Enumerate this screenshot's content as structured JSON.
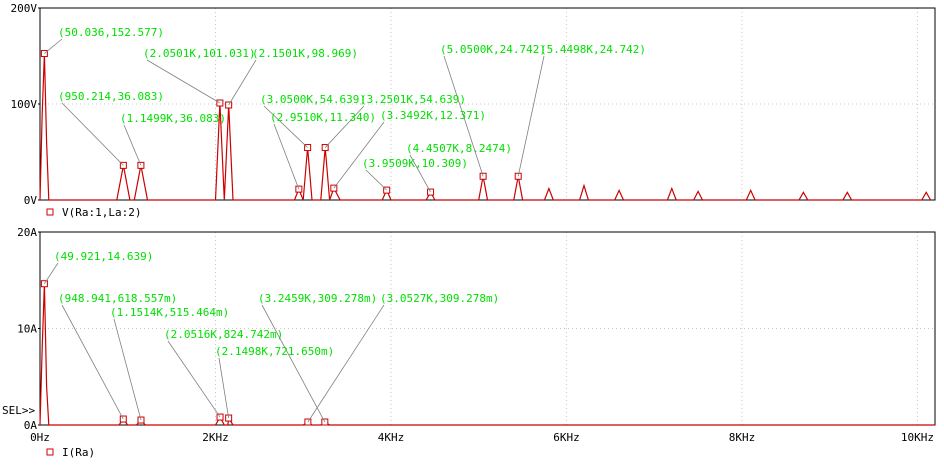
{
  "colors": {
    "background": "#ffffff",
    "trace": "#cc0000",
    "grid": "#c8c8c8",
    "frame": "#000000",
    "marker": "#cc0000",
    "annotation": "#00e000",
    "leader": "#808080"
  },
  "chart_data": [
    {
      "type": "line",
      "title": "",
      "xlabel": "",
      "ylabel": "",
      "xlim": [
        0,
        10200
      ],
      "ylim": [
        0,
        200
      ],
      "grid": true,
      "y_ticks": [
        "0V",
        "100V",
        "200V"
      ],
      "legend": "V(Ra:1,La:2)",
      "series": [
        {
          "name": "V(Ra:1,La:2)",
          "x": [
            0,
            25,
            50,
            75,
            100,
            400,
            875,
            950,
            1025,
            1075,
            1150,
            1225,
            2000,
            2050,
            2100,
            2150,
            2200,
            2900,
            2950,
            3000,
            3050,
            3100,
            3200,
            3250,
            3300,
            3349,
            3420,
            3900,
            3951,
            4000,
            4400,
            4451,
            4500,
            5000,
            5050,
            5100,
            5400,
            5450,
            5500,
            5750,
            5800,
            5850,
            6150,
            6200,
            6250,
            6550,
            6600,
            6650,
            7150,
            7200,
            7250,
            7450,
            7500,
            7550,
            8050,
            8100,
            8150,
            8650,
            8700,
            8750,
            9150,
            9200,
            9250,
            10050,
            10100,
            10150
          ],
          "y": [
            0,
            90,
            152.577,
            60,
            0,
            0,
            0,
            36.083,
            0,
            0,
            36.083,
            0,
            0,
            101.031,
            0,
            98.969,
            0,
            0,
            11.34,
            0,
            54.639,
            0,
            0,
            54.639,
            0,
            12.371,
            0,
            0,
            10.309,
            0,
            0,
            8.2474,
            0,
            0,
            24.742,
            0,
            0,
            24.742,
            0,
            0,
            12,
            0,
            0,
            15,
            0,
            0,
            10,
            0,
            0,
            12,
            0,
            0,
            9,
            0,
            0,
            10,
            0,
            0,
            8,
            0,
            0,
            8,
            0,
            0,
            8,
            0
          ]
        }
      ],
      "markers": [
        [
          50,
          152.577
        ],
        [
          950,
          36.083
        ],
        [
          1150,
          36.083
        ],
        [
          2050,
          101.031
        ],
        [
          2150,
          98.969
        ],
        [
          2950,
          11.34
        ],
        [
          3050,
          54.639
        ],
        [
          3250,
          54.639
        ],
        [
          3349,
          12.371
        ],
        [
          3951,
          10.309
        ],
        [
          4451,
          8.2474
        ],
        [
          5050,
          24.742
        ],
        [
          5450,
          24.742
        ]
      ],
      "annotations": [
        {
          "text": "(50.036,152.577)",
          "x": 50,
          "y": 152.577
        },
        {
          "text": "(2.0501K,101.031)",
          "x": 2050,
          "y": 101.031
        },
        {
          "text": "(2.1501K,98.969)",
          "x": 2150,
          "y": 98.969
        },
        {
          "text": "(5.0500K,24.742)",
          "x": 5050,
          "y": 24.742
        },
        {
          "text": "(5.4498K,24.742)",
          "x": 5450,
          "y": 24.742
        },
        {
          "text": "(950.214,36.083)",
          "x": 950,
          "y": 36.083
        },
        {
          "text": "(3.0500K,54.639)",
          "x": 3050,
          "y": 54.639
        },
        {
          "text": "(3.2501K,54.639)",
          "x": 3250,
          "y": 54.639
        },
        {
          "text": "(1.1499K,36.083)",
          "x": 1150,
          "y": 36.083
        },
        {
          "text": "(2.9510K,11.340)",
          "x": 2950,
          "y": 11.34
        },
        {
          "text": "(3.3492K,12.371)",
          "x": 3349,
          "y": 12.371
        },
        {
          "text": "(4.4507K,8.2474)",
          "x": 4451,
          "y": 8.2474
        },
        {
          "text": "(3.9509K,10.309)",
          "x": 3951,
          "y": 10.309
        }
      ]
    },
    {
      "type": "line",
      "title": "",
      "xlabel": "",
      "ylabel": "",
      "xlim": [
        0,
        10200
      ],
      "ylim": [
        0,
        20
      ],
      "grid": true,
      "x_ticks": [
        "0Hz",
        "2KHz",
        "4KHz",
        "6KHz",
        "8KHz",
        "10KHz"
      ],
      "y_ticks": [
        "0A",
        "10A",
        "20A"
      ],
      "selection_label": "SEL>>",
      "legend": "I(Ra)",
      "series": [
        {
          "name": "I(Ra)",
          "x": [
            0,
            25,
            50,
            75,
            100,
            900,
            949,
            1000,
            1100,
            1151,
            1200,
            2000,
            2052,
            2100,
            2140,
            2150,
            2200,
            3000,
            3053,
            3100,
            3200,
            3246,
            3300,
            10200
          ],
          "y": [
            0,
            8,
            14.639,
            4,
            0,
            0,
            0.618557,
            0,
            0,
            0.515464,
            0,
            0,
            0.824742,
            0,
            0,
            0.72165,
            0,
            0,
            0.309278,
            0,
            0,
            0.309278,
            0,
            0
          ]
        }
      ],
      "markers": [
        [
          50,
          14.639
        ],
        [
          949,
          0.618557
        ],
        [
          1151,
          0.515464
        ],
        [
          2052,
          0.824742
        ],
        [
          2150,
          0.72165
        ],
        [
          3053,
          0.309278
        ],
        [
          3246,
          0.309278
        ]
      ],
      "annotations": [
        {
          "text": "(49.921,14.639)",
          "x": 50,
          "y": 14.639
        },
        {
          "text": "(948.941,618.557m)",
          "x": 949,
          "y": 0.618557
        },
        {
          "text": "(1.1514K,515.464m)",
          "x": 1151,
          "y": 0.515464
        },
        {
          "text": "(3.2459K,309.278m)",
          "x": 3246,
          "y": 0.309278
        },
        {
          "text": "(3.0527K,309.278m)",
          "x": 3053,
          "y": 0.309278
        },
        {
          "text": "(2.0516K,824.742m)",
          "x": 2052,
          "y": 0.824742
        },
        {
          "text": "(2.1498K,721.650m)",
          "x": 2150,
          "y": 0.72165
        }
      ]
    }
  ]
}
